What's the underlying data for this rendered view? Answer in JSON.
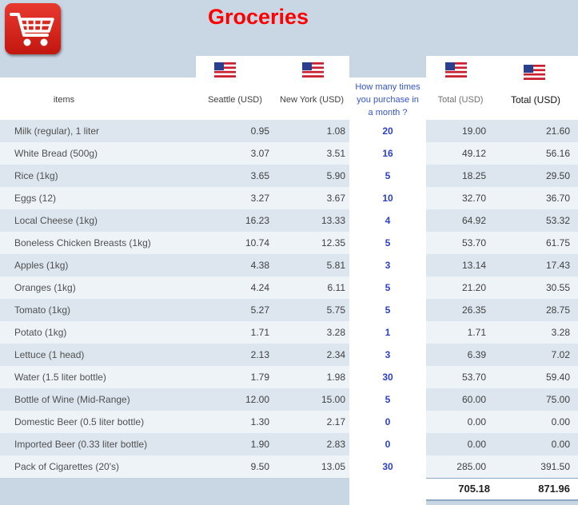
{
  "title": "Groceries",
  "icons": {
    "app": "shopping-cart-icon",
    "flag": "us-flag-icon"
  },
  "colors": {
    "title": "#ff0000",
    "band": "#c9d6e4",
    "row_alt": "#dde6ef",
    "question": "#3355cc",
    "times": "#2a3fcc"
  },
  "headers": {
    "items": "items",
    "seattle": "Seattle (USD)",
    "new_york": "New York (USD)",
    "times_line1": "How many times",
    "times_line2": "you purchase in",
    "times_line3": "a month ?",
    "total_seattle": "Total (USD)",
    "total_new_york": "Total (USD)"
  },
  "rows": [
    {
      "item": "Milk (regular), 1 liter",
      "seattle": "0.95",
      "new_york": "1.08",
      "times": "20",
      "total_seattle": "19.00",
      "total_new_york": "21.60"
    },
    {
      "item": "White Bread (500g)",
      "seattle": "3.07",
      "new_york": "3.51",
      "times": "16",
      "total_seattle": "49.12",
      "total_new_york": "56.16"
    },
    {
      "item": "Rice (1kg)",
      "seattle": "3.65",
      "new_york": "5.90",
      "times": "5",
      "total_seattle": "18.25",
      "total_new_york": "29.50"
    },
    {
      "item": "Eggs (12)",
      "seattle": "3.27",
      "new_york": "3.67",
      "times": "10",
      "total_seattle": "32.70",
      "total_new_york": "36.70"
    },
    {
      "item": "Local Cheese (1kg)",
      "seattle": "16.23",
      "new_york": "13.33",
      "times": "4",
      "total_seattle": "64.92",
      "total_new_york": "53.32"
    },
    {
      "item": "Boneless Chicken Breasts (1kg)",
      "seattle": "10.74",
      "new_york": "12.35",
      "times": "5",
      "total_seattle": "53.70",
      "total_new_york": "61.75"
    },
    {
      "item": "Apples (1kg)",
      "seattle": "4.38",
      "new_york": "5.81",
      "times": "3",
      "total_seattle": "13.14",
      "total_new_york": "17.43"
    },
    {
      "item": "Oranges (1kg)",
      "seattle": "4.24",
      "new_york": "6.11",
      "times": "5",
      "total_seattle": "21.20",
      "total_new_york": "30.55"
    },
    {
      "item": "Tomato (1kg)",
      "seattle": "5.27",
      "new_york": "5.75",
      "times": "5",
      "total_seattle": "26.35",
      "total_new_york": "28.75"
    },
    {
      "item": "Potato (1kg)",
      "seattle": "1.71",
      "new_york": "3.28",
      "times": "1",
      "total_seattle": "1.71",
      "total_new_york": "3.28"
    },
    {
      "item": "Lettuce (1 head)",
      "seattle": "2.13",
      "new_york": "2.34",
      "times": "3",
      "total_seattle": "6.39",
      "total_new_york": "7.02"
    },
    {
      "item": "Water (1.5 liter bottle)",
      "seattle": "1.79",
      "new_york": "1.98",
      "times": "30",
      "total_seattle": "53.70",
      "total_new_york": "59.40"
    },
    {
      "item": "Bottle of Wine (Mid-Range)",
      "seattle": "12.00",
      "new_york": "15.00",
      "times": "5",
      "total_seattle": "60.00",
      "total_new_york": "75.00"
    },
    {
      "item": "Domestic Beer (0.5 liter bottle)",
      "seattle": "1.30",
      "new_york": "2.17",
      "times": "0",
      "total_seattle": "0.00",
      "total_new_york": "0.00"
    },
    {
      "item": "Imported Beer (0.33 liter bottle)",
      "seattle": "1.90",
      "new_york": "2.83",
      "times": "0",
      "total_seattle": "0.00",
      "total_new_york": "0.00"
    },
    {
      "item": "Pack of Cigarettes (20's)",
      "seattle": "9.50",
      "new_york": "13.05",
      "times": "30",
      "total_seattle": "285.00",
      "total_new_york": "391.50"
    }
  ],
  "totals": {
    "seattle": "705.18",
    "new_york": "871.96"
  }
}
